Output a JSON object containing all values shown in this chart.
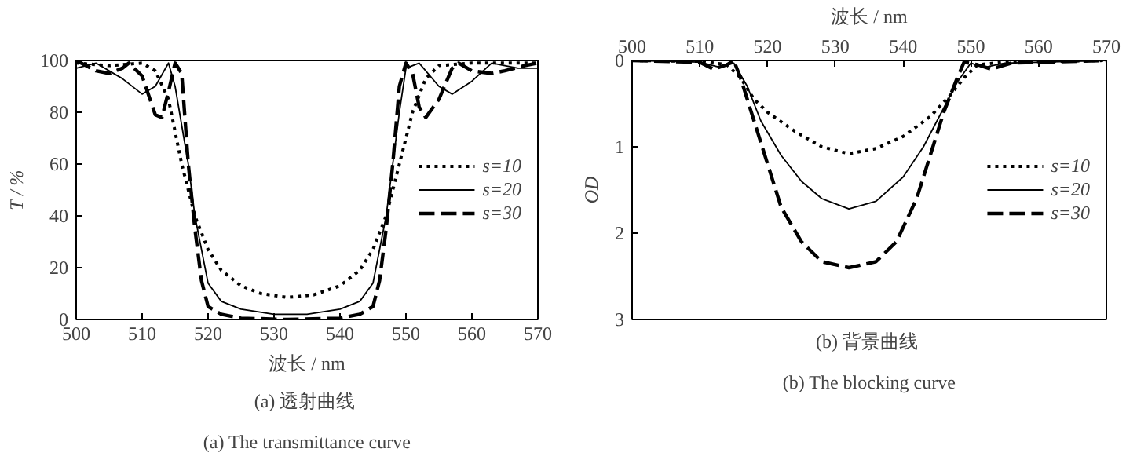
{
  "chart_data": [
    {
      "type": "line",
      "xlabel": "波长 / nm",
      "ylabel": "T / %",
      "xlim": [
        500,
        570
      ],
      "xticks": [
        500,
        510,
        520,
        530,
        540,
        550,
        560,
        570
      ],
      "ylim": [
        0,
        100
      ],
      "yticks": [
        0,
        20,
        40,
        60,
        80,
        100
      ],
      "grid": false,
      "legend": "right",
      "marker": "none",
      "annotations": [
        "(a)  透射曲线",
        "(a) The transmittance curve"
      ],
      "series": [
        {
          "name": "s=10",
          "color": "#000000",
          "line_style": "dotted",
          "x": [
            500,
            505,
            510,
            512,
            514,
            516,
            518,
            520,
            522,
            525,
            528,
            532,
            536,
            540,
            543,
            545,
            547,
            549,
            551,
            553,
            555,
            560,
            570
          ],
          "values": [
            99,
            98,
            99,
            96,
            85,
            60,
            40,
            27,
            19,
            13,
            10,
            8.5,
            9.5,
            13,
            19,
            27,
            40,
            60,
            80,
            93,
            98,
            99,
            99
          ]
        },
        {
          "name": "s=20",
          "color": "#000000",
          "line_style": "solid",
          "x": [
            500,
            503,
            507,
            510,
            512,
            514,
            515,
            517,
            518,
            520,
            522,
            525,
            530,
            535,
            540,
            543,
            545,
            547,
            549,
            550,
            552,
            555,
            557,
            560,
            563,
            567,
            570
          ],
          "values": [
            97,
            99,
            93,
            87,
            90,
            99,
            90,
            60,
            40,
            14,
            7,
            4,
            2,
            2,
            4,
            7,
            14,
            40,
            80,
            97,
            99,
            90,
            87,
            92,
            99,
            97,
            97
          ]
        },
        {
          "name": "s=30",
          "color": "#000000",
          "line_style": "dashed",
          "x": [
            500,
            503,
            505,
            507,
            508,
            510,
            512,
            513,
            514,
            515,
            516,
            517,
            518,
            519,
            520,
            522,
            525,
            532,
            540,
            543,
            545,
            546,
            547,
            548,
            549,
            550,
            551,
            552,
            553,
            555,
            557,
            558,
            560,
            563,
            565,
            568,
            570
          ],
          "values": [
            100,
            96,
            95,
            97,
            99,
            94,
            79,
            78,
            88,
            99,
            95,
            60,
            35,
            15,
            5,
            2,
            0.5,
            0,
            0.5,
            2,
            5,
            15,
            35,
            60,
            90,
            99,
            95,
            82,
            78,
            85,
            97,
            99,
            96,
            95,
            96,
            98,
            99
          ]
        }
      ]
    },
    {
      "type": "line",
      "xlabel": "波长 / nm",
      "ylabel": "OD",
      "xlim": [
        500,
        570
      ],
      "xticks": [
        500,
        510,
        520,
        530,
        540,
        550,
        560,
        570
      ],
      "ylim": [
        3,
        0
      ],
      "yticks": [
        0,
        1,
        2,
        3
      ],
      "grid": false,
      "legend": "right",
      "marker": "none",
      "annotations": [
        "(b)  背景曲线",
        "(b) The blocking curve"
      ],
      "series": [
        {
          "name": "s=10",
          "color": "#000000",
          "line_style": "dotted",
          "x": [
            500,
            510,
            514,
            516,
            518,
            520,
            524,
            528,
            532,
            536,
            540,
            544,
            547,
            549,
            551,
            555,
            570
          ],
          "values": [
            0,
            0.01,
            0.05,
            0.2,
            0.45,
            0.6,
            0.82,
            1.0,
            1.08,
            1.02,
            0.88,
            0.65,
            0.4,
            0.2,
            0.05,
            0.02,
            0
          ]
        },
        {
          "name": "s=20",
          "color": "#000000",
          "line_style": "solid",
          "x": [
            500,
            510,
            513,
            515,
            517,
            519,
            522,
            525,
            528,
            532,
            536,
            540,
            543,
            546,
            548,
            550,
            552,
            555,
            570
          ],
          "values": [
            0,
            0.02,
            0.08,
            0.03,
            0.3,
            0.7,
            1.1,
            1.4,
            1.6,
            1.72,
            1.63,
            1.35,
            1.0,
            0.55,
            0.25,
            0.03,
            0.08,
            0.03,
            0
          ]
        },
        {
          "name": "s=30",
          "color": "#000000",
          "line_style": "dashed",
          "x": [
            500,
            510,
            512,
            514,
            515,
            516,
            518,
            520,
            522,
            525,
            528,
            532,
            536,
            539,
            542,
            544,
            546,
            548,
            549,
            551,
            553,
            556,
            570
          ],
          "values": [
            0,
            0.02,
            0.1,
            0.05,
            0,
            0.2,
            0.7,
            1.2,
            1.7,
            2.1,
            2.33,
            2.4,
            2.33,
            2.1,
            1.6,
            1.1,
            0.6,
            0.2,
            0.02,
            0.05,
            0.1,
            0.03,
            0
          ]
        }
      ]
    }
  ]
}
